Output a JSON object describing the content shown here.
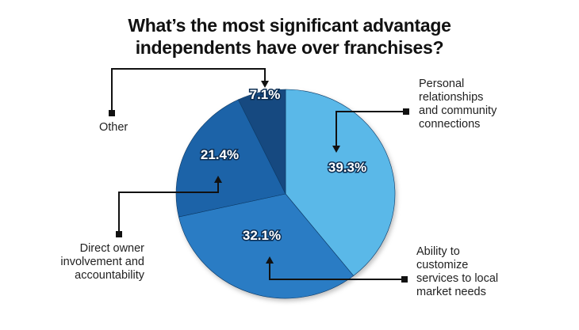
{
  "chart_data": {
    "type": "pie",
    "title_lines": [
      "What’s the most significant advantage",
      "independents have over franchises?"
    ],
    "slices": [
      {
        "label_lines": [
          "Personal",
          "relationships",
          "and community",
          "connections"
        ],
        "value": 39.3,
        "value_label": "39.3%",
        "color": "#5ab8e8"
      },
      {
        "label_lines": [
          "Ability to",
          "customize",
          "services to local",
          "market needs"
        ],
        "value": 32.1,
        "value_label": "32.1%",
        "color": "#2a7cc4"
      },
      {
        "label_lines": [
          "Direct owner",
          "involvement and",
          "accountability"
        ],
        "value": 21.4,
        "value_label": "21.4%",
        "color": "#1f64a8"
      },
      {
        "label_lines": [
          "Other"
        ],
        "value": 7.1,
        "value_label": "7.1%",
        "color": "#154a80"
      }
    ]
  }
}
